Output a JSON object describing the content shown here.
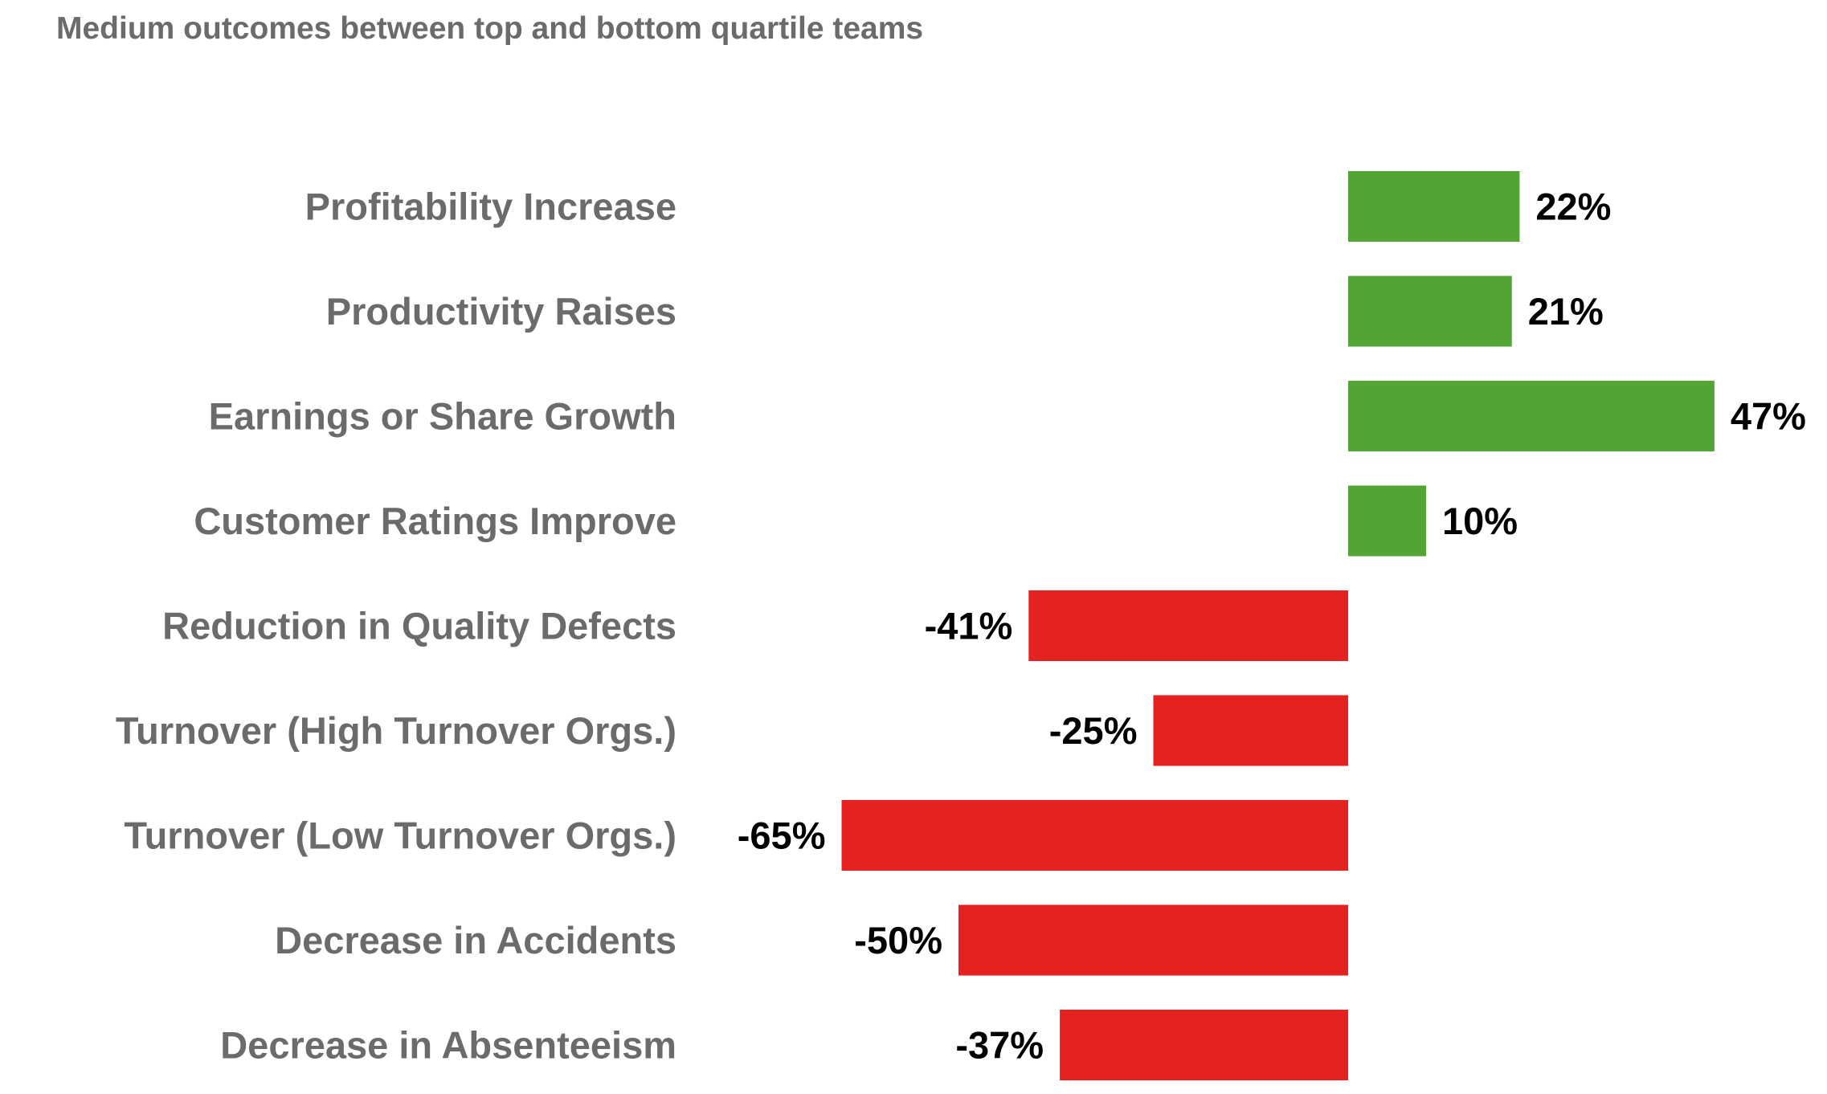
{
  "chart_data": {
    "type": "bar",
    "orientation": "horizontal",
    "title": "Medium outcomes between top and bottom quartile teams",
    "categories": [
      "Profitability Increase",
      "Productivity Raises",
      "Earnings or Share Growth",
      "Customer Ratings Improve",
      "Reduction in Quality Defects",
      "Turnover (High Turnover Orgs.)",
      "Turnover (Low Turnover Orgs.)",
      "Decrease in Accidents",
      "Decrease in Absenteeism"
    ],
    "values": [
      22,
      21,
      47,
      10,
      -41,
      -25,
      -65,
      -50,
      -37
    ],
    "value_labels": [
      "22%",
      "21%",
      "47%",
      "10%",
      "-41%",
      "-25%",
      "-65%",
      "-50%",
      "-37%"
    ],
    "unit": "%",
    "xlim": [
      -65,
      47
    ],
    "grid": false,
    "legend": "none",
    "colors": {
      "positive": "#52a535",
      "negative": "#e42320",
      "category_text": "#6b6b6b",
      "value_text": "#000000",
      "title_text": "#6b6b6b"
    }
  }
}
